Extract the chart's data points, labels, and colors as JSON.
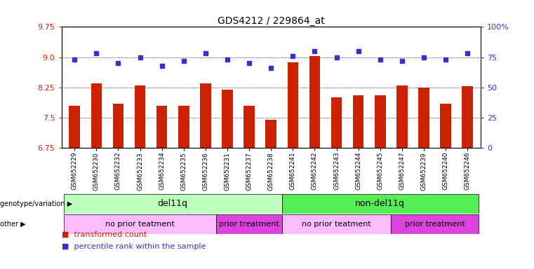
{
  "title": "GDS4212 / 229864_at",
  "samples": [
    "GSM652229",
    "GSM652230",
    "GSM652232",
    "GSM652233",
    "GSM652234",
    "GSM652235",
    "GSM652236",
    "GSM652231",
    "GSM652237",
    "GSM652238",
    "GSM652241",
    "GSM652242",
    "GSM652243",
    "GSM652244",
    "GSM652245",
    "GSM652247",
    "GSM652239",
    "GSM652240",
    "GSM652246"
  ],
  "bar_values": [
    7.8,
    8.35,
    7.85,
    8.3,
    7.8,
    7.8,
    8.35,
    8.2,
    7.8,
    7.45,
    8.87,
    9.02,
    8.0,
    8.05,
    8.05,
    8.3,
    8.25,
    7.85,
    8.28
  ],
  "dot_values": [
    73,
    78,
    70,
    75,
    68,
    72,
    78,
    73,
    70,
    66,
    76,
    80,
    75,
    80,
    73,
    72,
    75,
    73,
    78
  ],
  "ylim_left": [
    6.75,
    9.75
  ],
  "ylim_right": [
    0,
    100
  ],
  "yticks_left": [
    6.75,
    7.5,
    8.25,
    9.0,
    9.75
  ],
  "yticks_right": [
    0,
    25,
    50,
    75,
    100
  ],
  "ytick_labels_right": [
    "0",
    "25",
    "50",
    "75",
    "100%"
  ],
  "bar_color": "#cc2200",
  "dot_color": "#3333cc",
  "groups": [
    {
      "label": "del11q",
      "start": 0,
      "end": 10,
      "color": "#bbffbb"
    },
    {
      "label": "non-del11q",
      "start": 10,
      "end": 19,
      "color": "#55ee55"
    }
  ],
  "treatments": [
    {
      "label": "no prior teatment",
      "start": 0,
      "end": 7,
      "color": "#ffbbff"
    },
    {
      "label": "prior treatment",
      "start": 7,
      "end": 10,
      "color": "#dd44dd"
    },
    {
      "label": "no prior teatment",
      "start": 10,
      "end": 15,
      "color": "#ffbbff"
    },
    {
      "label": "prior treatment",
      "start": 15,
      "end": 19,
      "color": "#dd44dd"
    }
  ]
}
